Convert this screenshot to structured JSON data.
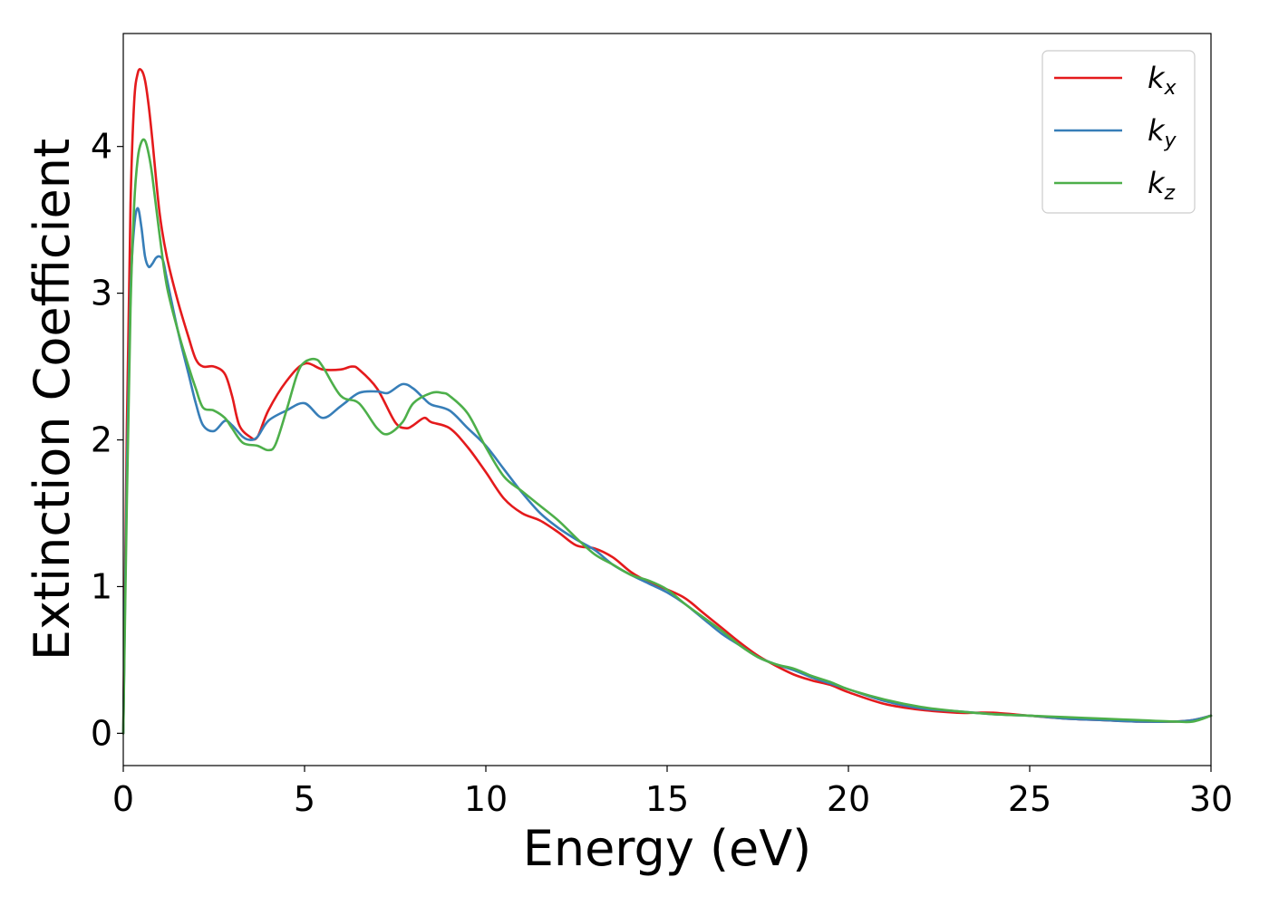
{
  "chart_data": {
    "type": "line",
    "title": "",
    "xlabel": "Energy (eV)",
    "ylabel": "Extinction Coefficient",
    "xlim": [
      0,
      30
    ],
    "ylim": [
      -0.22,
      4.77
    ],
    "xticks": [
      0,
      5,
      10,
      15,
      20,
      25,
      30
    ],
    "yticks": [
      0,
      1,
      2,
      3,
      4
    ],
    "grid": false,
    "legend_position": "top-right",
    "series": [
      {
        "name": "k_x",
        "legend_main": "k",
        "legend_sub": "x",
        "color": "#e41a1c",
        "x": [
          0,
          0.1,
          0.2,
          0.3,
          0.4,
          0.5,
          0.6,
          0.7,
          0.8,
          1.0,
          1.2,
          1.5,
          1.8,
          2.0,
          2.2,
          2.5,
          2.8,
          3.0,
          3.2,
          3.5,
          3.7,
          4.0,
          4.5,
          5.0,
          5.5,
          6.0,
          6.3,
          6.5,
          7.0,
          7.5,
          7.8,
          8.0,
          8.3,
          8.5,
          9.0,
          9.5,
          10.0,
          10.5,
          11.0,
          11.5,
          12.0,
          12.5,
          13.0,
          13.5,
          14.0,
          14.5,
          15.0,
          15.5,
          16.0,
          16.5,
          17.0,
          17.5,
          18.0,
          18.5,
          19.0,
          19.5,
          20.0,
          21.0,
          22.0,
          23.0,
          23.5,
          24.0,
          25.0,
          26.0,
          27.0,
          28.0,
          29.0,
          29.5,
          30.0
        ],
        "y": [
          0.0,
          2.1,
          3.6,
          4.3,
          4.5,
          4.52,
          4.45,
          4.28,
          4.05,
          3.55,
          3.25,
          2.95,
          2.7,
          2.55,
          2.5,
          2.5,
          2.45,
          2.3,
          2.1,
          2.02,
          2.02,
          2.2,
          2.4,
          2.52,
          2.48,
          2.48,
          2.5,
          2.48,
          2.35,
          2.12,
          2.08,
          2.1,
          2.15,
          2.12,
          2.08,
          1.95,
          1.78,
          1.6,
          1.5,
          1.45,
          1.37,
          1.28,
          1.26,
          1.2,
          1.1,
          1.03,
          0.98,
          0.92,
          0.82,
          0.72,
          0.62,
          0.53,
          0.46,
          0.4,
          0.36,
          0.33,
          0.28,
          0.2,
          0.16,
          0.14,
          0.14,
          0.14,
          0.12,
          0.1,
          0.09,
          0.08,
          0.08,
          0.09,
          0.12
        ]
      },
      {
        "name": "k_y",
        "legend_main": "k",
        "legend_sub": "y",
        "color": "#377eb8",
        "x": [
          0,
          0.1,
          0.2,
          0.3,
          0.4,
          0.5,
          0.6,
          0.7,
          0.8,
          0.9,
          1.0,
          1.1,
          1.2,
          1.5,
          1.8,
          2.0,
          2.2,
          2.5,
          2.8,
          3.0,
          3.3,
          3.5,
          3.7,
          4.0,
          4.5,
          5.0,
          5.5,
          6.0,
          6.5,
          7.0,
          7.3,
          7.7,
          8.0,
          8.3,
          8.5,
          9.0,
          9.5,
          10.0,
          10.5,
          11.0,
          11.5,
          12.0,
          12.5,
          13.0,
          13.5,
          14.0,
          14.5,
          15.0,
          15.5,
          16.0,
          16.5,
          17.0,
          17.5,
          18.0,
          18.5,
          19.0,
          19.5,
          20.0,
          21.0,
          22.0,
          23.0,
          24.0,
          25.0,
          26.0,
          27.0,
          28.0,
          29.0,
          29.5,
          30.0
        ],
        "y": [
          0.0,
          1.8,
          3.0,
          3.45,
          3.58,
          3.45,
          3.25,
          3.18,
          3.2,
          3.24,
          3.25,
          3.22,
          3.1,
          2.75,
          2.45,
          2.25,
          2.1,
          2.06,
          2.13,
          2.1,
          2.02,
          2.0,
          2.02,
          2.13,
          2.2,
          2.25,
          2.15,
          2.23,
          2.32,
          2.33,
          2.32,
          2.38,
          2.35,
          2.28,
          2.24,
          2.2,
          2.08,
          1.96,
          1.8,
          1.64,
          1.5,
          1.4,
          1.32,
          1.25,
          1.15,
          1.08,
          1.02,
          0.96,
          0.88,
          0.78,
          0.68,
          0.6,
          0.52,
          0.47,
          0.43,
          0.38,
          0.34,
          0.3,
          0.22,
          0.17,
          0.15,
          0.13,
          0.12,
          0.1,
          0.09,
          0.08,
          0.08,
          0.09,
          0.12
        ]
      },
      {
        "name": "k_z",
        "legend_main": "k",
        "legend_sub": "z",
        "color": "#4daf4a",
        "x": [
          0,
          0.1,
          0.2,
          0.3,
          0.4,
          0.5,
          0.6,
          0.7,
          0.8,
          1.0,
          1.2,
          1.5,
          1.8,
          2.0,
          2.2,
          2.5,
          2.8,
          3.0,
          3.3,
          3.7,
          4.0,
          4.2,
          4.5,
          4.8,
          5.0,
          5.3,
          5.5,
          6.0,
          6.5,
          7.0,
          7.3,
          7.7,
          8.0,
          8.5,
          8.8,
          9.0,
          9.5,
          10.0,
          10.5,
          11.0,
          11.5,
          12.0,
          12.5,
          13.0,
          13.5,
          14.0,
          14.5,
          15.0,
          15.5,
          16.0,
          16.5,
          17.0,
          17.5,
          18.0,
          18.5,
          19.0,
          19.5,
          20.0,
          21.0,
          22.0,
          23.0,
          24.0,
          25.0,
          26.0,
          27.0,
          28.0,
          29.0,
          29.5,
          30.0
        ],
        "y": [
          0.0,
          1.6,
          2.9,
          3.6,
          3.92,
          4.03,
          4.04,
          3.95,
          3.8,
          3.4,
          3.05,
          2.75,
          2.5,
          2.35,
          2.22,
          2.2,
          2.15,
          2.08,
          1.98,
          1.96,
          1.93,
          1.97,
          2.2,
          2.45,
          2.53,
          2.55,
          2.5,
          2.3,
          2.25,
          2.08,
          2.04,
          2.12,
          2.25,
          2.32,
          2.32,
          2.3,
          2.18,
          1.95,
          1.75,
          1.65,
          1.55,
          1.45,
          1.33,
          1.22,
          1.15,
          1.08,
          1.04,
          0.98,
          0.88,
          0.79,
          0.7,
          0.6,
          0.52,
          0.47,
          0.44,
          0.39,
          0.35,
          0.3,
          0.23,
          0.18,
          0.15,
          0.13,
          0.12,
          0.11,
          0.1,
          0.09,
          0.08,
          0.08,
          0.12
        ]
      }
    ]
  }
}
